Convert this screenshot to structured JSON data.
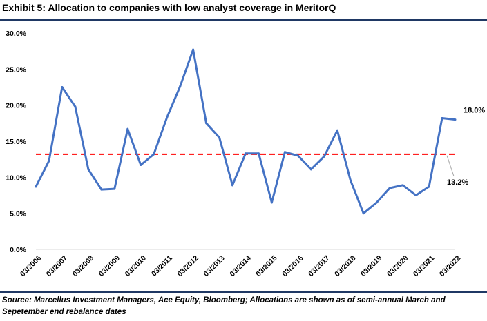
{
  "exhibit": {
    "title": "Exhibit 5: Allocation to companies with low analyst coverage in MeritorQ",
    "source": "Source: Marcellus Investment Managers, Ace Equity, Bloomberg; Allocations are shown as of semi-annual March and Sepetember end rebalance dates"
  },
  "chart_data": {
    "type": "line",
    "title": "",
    "xlabel": "",
    "ylabel": "",
    "ylim": [
      0,
      30
    ],
    "y_ticks": [
      "0.0%",
      "5.0%",
      "10.0%",
      "15.0%",
      "20.0%",
      "25.0%",
      "30.0%"
    ],
    "y_tick_values": [
      0,
      5,
      10,
      15,
      20,
      25,
      30
    ],
    "categories": [
      "03/2006",
      "09/2006",
      "03/2007",
      "09/2007",
      "03/2008",
      "09/2008",
      "03/2009",
      "09/2009",
      "03/2010",
      "09/2010",
      "03/2011",
      "09/2011",
      "03/2012",
      "09/2012",
      "03/2013",
      "09/2013",
      "03/2014",
      "09/2014",
      "03/2015",
      "09/2015",
      "03/2016",
      "09/2016",
      "03/2017",
      "09/2017",
      "03/2018",
      "09/2018",
      "03/2019",
      "09/2019",
      "03/2020",
      "09/2020",
      "03/2021",
      "09/2021",
      "03/2022"
    ],
    "x_tick_labels": [
      "03/2006",
      "03/2007",
      "03/2008",
      "03/2009",
      "03/2010",
      "03/2011",
      "03/2012",
      "03/2013",
      "03/2014",
      "03/2015",
      "03/2016",
      "03/2017",
      "03/2018",
      "03/2019",
      "03/2020",
      "03/2021",
      "03/2022"
    ],
    "series": [
      {
        "name": "",
        "color": "#4472c4",
        "values": [
          8.7,
          12.3,
          22.5,
          19.8,
          11.1,
          8.3,
          8.4,
          16.7,
          11.7,
          13.2,
          18.3,
          22.6,
          27.7,
          17.5,
          15.5,
          8.9,
          13.3,
          13.3,
          6.5,
          13.5,
          13.0,
          11.1,
          12.9,
          16.5,
          9.6,
          5.0,
          6.5,
          8.5,
          8.9,
          7.5,
          8.7,
          18.2,
          18.0
        ]
      }
    ],
    "reference_line": {
      "value": 13.2,
      "color": "#ff0000",
      "style": "dashed"
    },
    "annotations": [
      {
        "text": "18.0%",
        "category": "03/2022"
      },
      {
        "text": "13.2%",
        "target": "reference_line"
      }
    ],
    "grid": false,
    "legend": "none"
  }
}
